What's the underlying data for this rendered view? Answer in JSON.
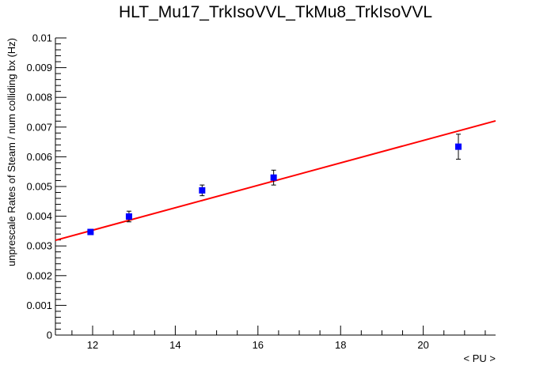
{
  "chart_data": {
    "type": "scatter",
    "title": "HLT_Mu17_TrkIsoVVL_TkMu8_TrkIsoVVL",
    "xlabel": "< PU >",
    "ylabel": "unprescale Rates of Steam / num colliding bx (Hz)",
    "xlim": [
      11.1,
      21.75
    ],
    "ylim": [
      0,
      0.01
    ],
    "x_ticks": [
      "12",
      "14",
      "16",
      "18",
      "20"
    ],
    "y_ticks": [
      "0",
      "0.001",
      "0.002",
      "0.003",
      "0.004",
      "0.005",
      "0.006",
      "0.007",
      "0.008",
      "0.009",
      "0.01"
    ],
    "grid": false,
    "series": [
      {
        "marker": "square",
        "color": "#0000ff",
        "points": [
          {
            "x": 11.95,
            "y": 0.00347,
            "err": 8e-05
          },
          {
            "x": 12.88,
            "y": 0.00399,
            "err": 0.00018
          },
          {
            "x": 14.65,
            "y": 0.00487,
            "err": 0.00018
          },
          {
            "x": 16.38,
            "y": 0.0053,
            "err": 0.00025
          },
          {
            "x": 20.85,
            "y": 0.00634,
            "err": 0.00042
          }
        ]
      }
    ],
    "fit": {
      "type": "linear",
      "color": "#ff0000",
      "x": [
        11.1,
        21.75
      ],
      "y": [
        0.00319,
        0.00721
      ]
    }
  }
}
